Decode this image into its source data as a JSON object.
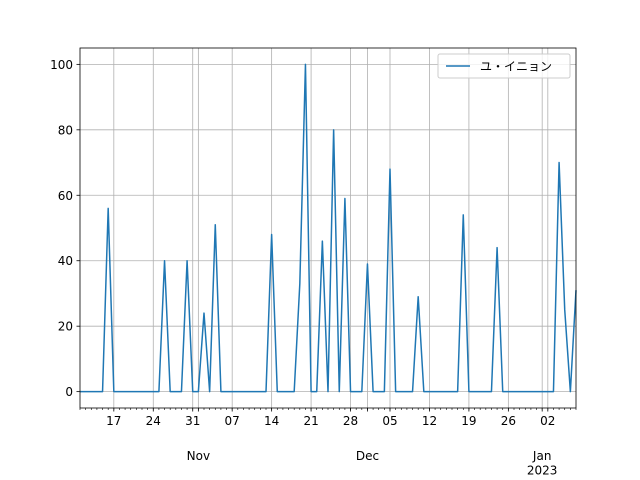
{
  "chart_data": {
    "type": "line",
    "x": [
      "2022-10-11",
      "2022-10-12",
      "2022-10-13",
      "2022-10-14",
      "2022-10-15",
      "2022-10-16",
      "2022-10-17",
      "2022-10-18",
      "2022-10-19",
      "2022-10-20",
      "2022-10-21",
      "2022-10-22",
      "2022-10-23",
      "2022-10-24",
      "2022-10-25",
      "2022-10-26",
      "2022-10-27",
      "2022-10-28",
      "2022-10-29",
      "2022-10-30",
      "2022-10-31",
      "2022-11-01",
      "2022-11-02",
      "2022-11-03",
      "2022-11-04",
      "2022-11-05",
      "2022-11-06",
      "2022-11-07",
      "2022-11-08",
      "2022-11-09",
      "2022-11-10",
      "2022-11-11",
      "2022-11-12",
      "2022-11-13",
      "2022-11-14",
      "2022-11-15",
      "2022-11-16",
      "2022-11-17",
      "2022-11-18",
      "2022-11-19",
      "2022-11-20",
      "2022-11-21",
      "2022-11-22",
      "2022-11-23",
      "2022-11-24",
      "2022-11-25",
      "2022-11-26",
      "2022-11-27",
      "2022-11-28",
      "2022-11-29",
      "2022-11-30",
      "2022-12-01",
      "2022-12-02",
      "2022-12-03",
      "2022-12-04",
      "2022-12-05",
      "2022-12-06",
      "2022-12-07",
      "2022-12-08",
      "2022-12-09",
      "2022-12-10",
      "2022-12-11",
      "2022-12-12",
      "2022-12-13",
      "2022-12-14",
      "2022-12-15",
      "2022-12-16",
      "2022-12-17",
      "2022-12-18",
      "2022-12-19",
      "2022-12-20",
      "2022-12-21",
      "2022-12-22",
      "2022-12-23",
      "2022-12-24",
      "2022-12-25",
      "2022-12-26",
      "2022-12-27",
      "2022-12-28",
      "2022-12-29",
      "2022-12-30",
      "2022-12-31",
      "2023-01-01",
      "2023-01-02",
      "2023-01-03",
      "2023-01-04",
      "2023-01-05",
      "2023-01-06",
      "2023-01-07"
    ],
    "series": [
      {
        "name": "ユ・イニョン",
        "color": "#1f77b4",
        "values": [
          0,
          0,
          0,
          0,
          0,
          56,
          0,
          0,
          0,
          0,
          0,
          0,
          0,
          0,
          0,
          40,
          0,
          0,
          0,
          40,
          0,
          0,
          24,
          0,
          51,
          0,
          0,
          0,
          0,
          0,
          0,
          0,
          0,
          0,
          48,
          0,
          0,
          0,
          0,
          33,
          100,
          0,
          0,
          46,
          0,
          80,
          0,
          59,
          0,
          0,
          0,
          39,
          0,
          0,
          0,
          68,
          0,
          0,
          0,
          0,
          29,
          0,
          0,
          0,
          0,
          0,
          0,
          0,
          54,
          0,
          0,
          0,
          0,
          0,
          44,
          0,
          0,
          0,
          0,
          0,
          0,
          0,
          0,
          0,
          0,
          70,
          25,
          0,
          31
        ]
      }
    ],
    "xlim": [
      "2022-10-11",
      "2023-01-07"
    ],
    "xticks": [
      {
        "value": "2022-10-17",
        "label": "17"
      },
      {
        "value": "2022-10-24",
        "label": "24"
      },
      {
        "value": "2022-10-31",
        "label": "31"
      },
      {
        "value": "2022-11-07",
        "label": "07"
      },
      {
        "value": "2022-11-14",
        "label": "14"
      },
      {
        "value": "2022-11-21",
        "label": "21"
      },
      {
        "value": "2022-11-28",
        "label": "28"
      },
      {
        "value": "2022-12-05",
        "label": "05"
      },
      {
        "value": "2022-12-12",
        "label": "12"
      },
      {
        "value": "2022-12-19",
        "label": "19"
      },
      {
        "value": "2022-12-26",
        "label": "26"
      },
      {
        "value": "2023-01-02",
        "label": "02"
      }
    ],
    "month_ticks": [
      {
        "value": "2022-11-01",
        "label": "Nov"
      },
      {
        "value": "2022-12-01",
        "label": "Dec"
      },
      {
        "value": "2023-01-01",
        "label": "Jan\n2023"
      }
    ],
    "ylim": [
      -5,
      105
    ],
    "yticks": [
      0,
      20,
      40,
      60,
      80,
      100
    ],
    "grid": true,
    "legend": "upper right"
  }
}
